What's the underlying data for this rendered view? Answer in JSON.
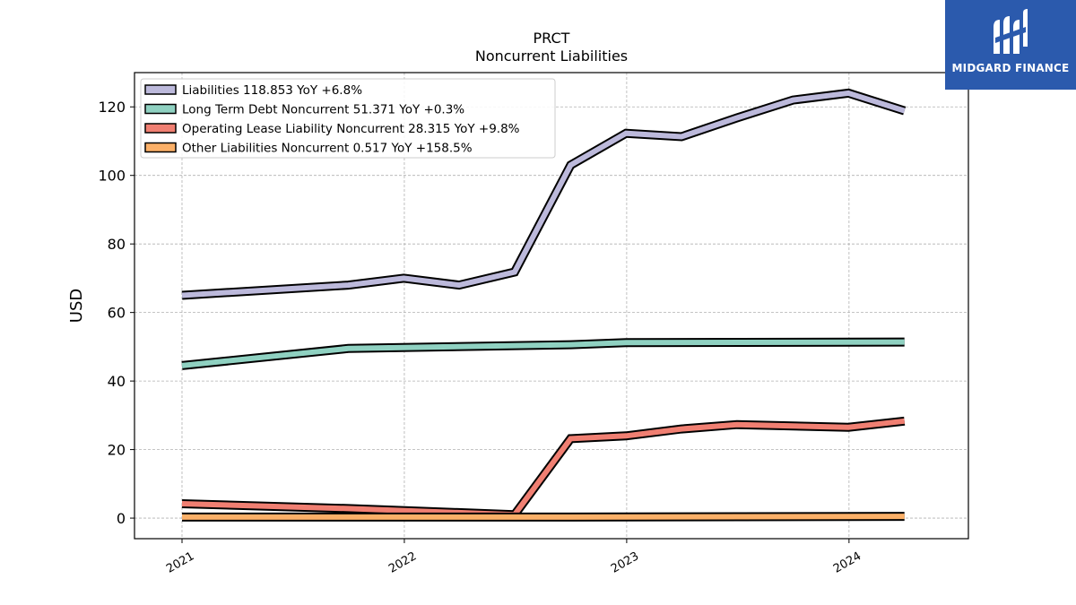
{
  "chart_data": {
    "type": "line",
    "title": "PRCT",
    "subtitle": "Noncurrent  Liabilities",
    "xlabel": "",
    "ylabel": "USD",
    "ylim": [
      -6,
      130
    ],
    "xlim": [
      "2020-10-15",
      "2024-07-15"
    ],
    "x_ticks": [
      "2021",
      "2022",
      "2023",
      "2024"
    ],
    "y_ticks": [
      0,
      20,
      40,
      60,
      80,
      100,
      120
    ],
    "grid": true,
    "legend_position": "top-left",
    "series": [
      {
        "name": "Liabilities",
        "legend_label": "Liabilities  118.853 YoY +6.8%",
        "color": "#bcb9db",
        "x": [
          "2021-01-01",
          "2021-10-01",
          "2021-12-31",
          "2022-04-01",
          "2022-07-01",
          "2022-10-01",
          "2022-12-31",
          "2023-04-01",
          "2023-07-01",
          "2023-10-01",
          "2023-12-31",
          "2024-04-01"
        ],
        "values": [
          65.0,
          68.0,
          70.0,
          68.0,
          71.8,
          103.0,
          112.3,
          111.3,
          116.8,
          122.0,
          124.0,
          118.853
        ]
      },
      {
        "name": "Long Term Debt Noncurrent",
        "legend_label": "Long Term Debt Noncurrent  51.371 YoY +0.3%",
        "color": "#8fd1c1",
        "x": [
          "2021-01-01",
          "2021-10-01",
          "2022-10-01",
          "2022-12-31",
          "2024-04-01"
        ],
        "values": [
          44.5,
          49.5,
          50.6,
          51.2,
          51.371
        ]
      },
      {
        "name": "Operating Lease Liability Noncurrent",
        "legend_label": "Operating Lease Liability Noncurrent  28.315 YoY +9.8%",
        "color": "#f07f72",
        "x": [
          "2021-01-01",
          "2021-10-01",
          "2022-07-01",
          "2022-10-01",
          "2022-12-31",
          "2023-04-01",
          "2023-07-01",
          "2023-12-31",
          "2024-04-01"
        ],
        "values": [
          4.2,
          2.8,
          1.0,
          23.2,
          24.0,
          26.0,
          27.3,
          26.5,
          28.315
        ]
      },
      {
        "name": "Other Liabilities Noncurrent",
        "legend_label": "Other Liabilities Noncurrent  0.517 YoY +158.5%",
        "color": "#fbb068",
        "x": [
          "2021-01-01",
          "2022-10-01",
          "2024-04-01"
        ],
        "values": [
          0.3,
          0.3,
          0.517
        ]
      }
    ]
  },
  "brand": {
    "name": "MIDGARD FINANCE",
    "background": "#2b5aad"
  }
}
